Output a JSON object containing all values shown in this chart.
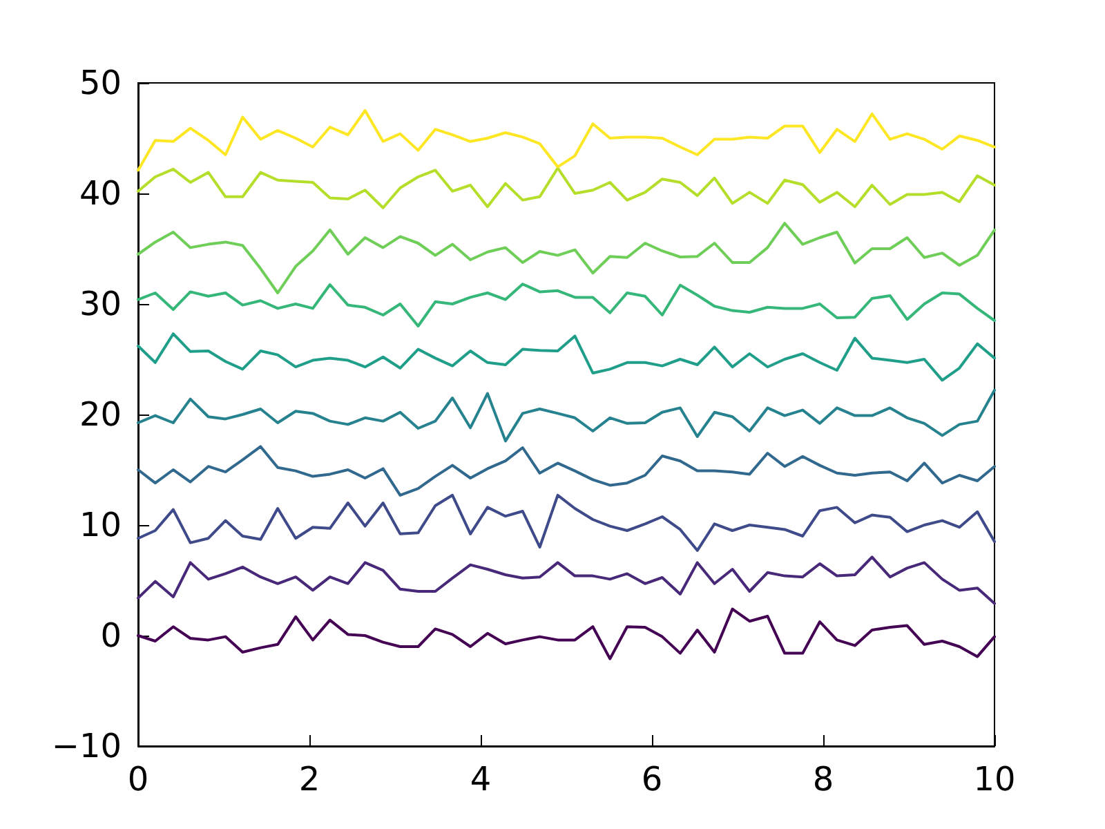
{
  "chart_data": {
    "type": "line",
    "x": [
      0,
      0.2,
      0.41,
      0.61,
      0.82,
      1.02,
      1.22,
      1.43,
      1.63,
      1.84,
      2.04,
      2.24,
      2.45,
      2.65,
      2.86,
      3.06,
      3.27,
      3.47,
      3.67,
      3.88,
      4.08,
      4.29,
      4.49,
      4.69,
      4.9,
      5.1,
      5.31,
      5.51,
      5.71,
      5.92,
      6.12,
      6.33,
      6.53,
      6.73,
      6.94,
      7.14,
      7.35,
      7.55,
      7.76,
      7.96,
      8.16,
      8.37,
      8.57,
      8.78,
      8.98,
      9.18,
      9.39,
      9.59,
      9.8,
      10
    ],
    "series": [
      {
        "color": "#440154",
        "values": [
          0,
          -0.5,
          0.8,
          -0.25,
          -0.4,
          -0.1,
          -1.5,
          -1.1,
          -0.8,
          1.7,
          -0.4,
          1.4,
          0.1,
          0,
          -0.6,
          -1.0,
          -1.0,
          0.6,
          0.1,
          -1.0,
          0.2,
          -0.75,
          -0.4,
          -0.1,
          -0.4,
          -0.4,
          0.8,
          -2.1,
          0.8,
          0.75,
          -0.1,
          -1.6,
          0.5,
          -1.5,
          2.4,
          1.3,
          1.75,
          -1.6,
          -1.6,
          1.25,
          -0.4,
          -0.9,
          0.5,
          0.75,
          0.9,
          -0.8,
          -0.5,
          -1.0,
          -1.9,
          -0.1
        ]
      },
      {
        "color": "#482878",
        "values": [
          3.4,
          4.9,
          3.5,
          6.6,
          5.1,
          5.6,
          6.2,
          5.3,
          4.7,
          5.3,
          4.1,
          5.3,
          4.7,
          6.6,
          5.9,
          4.2,
          4.0,
          4.0,
          5.2,
          6.4,
          6.0,
          5.5,
          5.2,
          5.3,
          6.6,
          5.4,
          5.4,
          5.1,
          5.6,
          4.7,
          5.25,
          3.75,
          6.6,
          4.7,
          6.0,
          4.0,
          5.7,
          5.4,
          5.3,
          6.5,
          5.4,
          5.5,
          7.1,
          5.3,
          6.1,
          6.6,
          5.1,
          4.1,
          4.3,
          2.9
        ]
      },
      {
        "color": "#3e4a89",
        "values": [
          8.8,
          9.5,
          11.4,
          8.4,
          8.8,
          10.4,
          9.0,
          8.7,
          11.5,
          8.8,
          9.8,
          9.7,
          12.0,
          9.9,
          12.0,
          9.2,
          9.3,
          11.75,
          12.7,
          9.2,
          11.6,
          10.8,
          11.25,
          8.0,
          12.7,
          11.5,
          10.5,
          9.9,
          9.5,
          10.1,
          10.75,
          9.6,
          7.7,
          10.1,
          9.5,
          10.0,
          9.8,
          9.6,
          9.0,
          11.3,
          11.6,
          10.2,
          10.9,
          10.7,
          9.4,
          10.0,
          10.4,
          9.8,
          11.2,
          8.5
        ]
      },
      {
        "color": "#31688e",
        "values": [
          15.0,
          13.8,
          15.0,
          13.9,
          15.3,
          14.8,
          15.9,
          17.1,
          15.2,
          14.9,
          14.4,
          14.6,
          15.0,
          14.25,
          15.1,
          12.7,
          13.3,
          14.4,
          15.4,
          14.25,
          15.1,
          15.8,
          17.0,
          14.7,
          15.6,
          14.9,
          14.1,
          13.6,
          13.8,
          14.5,
          16.25,
          15.8,
          14.9,
          14.9,
          14.8,
          14.6,
          16.5,
          15.3,
          16.2,
          15.4,
          14.7,
          14.5,
          14.7,
          14.8,
          14.0,
          15.6,
          13.8,
          14.5,
          14.0,
          15.3
        ]
      },
      {
        "color": "#26828e",
        "values": [
          19.25,
          19.9,
          19.25,
          21.4,
          19.8,
          19.6,
          20.0,
          20.5,
          19.25,
          20.3,
          20.1,
          19.4,
          19.1,
          19.7,
          19.4,
          20.2,
          18.75,
          19.4,
          21.5,
          18.8,
          21.9,
          17.6,
          20.1,
          20.5,
          20.1,
          19.7,
          18.5,
          19.7,
          19.2,
          19.25,
          20.2,
          20.6,
          18.0,
          20.2,
          19.8,
          18.5,
          20.6,
          19.9,
          20.4,
          19.2,
          20.6,
          19.9,
          19.9,
          20.6,
          19.7,
          19.2,
          18.1,
          19.1,
          19.4,
          22.2
        ]
      },
      {
        "color": "#1f9e89",
        "values": [
          26.2,
          24.7,
          27.3,
          25.7,
          25.75,
          24.8,
          24.1,
          25.75,
          25.4,
          24.3,
          24.9,
          25.1,
          24.9,
          24.3,
          25.2,
          24.2,
          25.9,
          25.1,
          24.4,
          25.75,
          24.7,
          24.5,
          25.9,
          25.8,
          25.75,
          27.1,
          23.75,
          24.1,
          24.7,
          24.7,
          24.4,
          25.0,
          24.5,
          26.1,
          24.3,
          25.5,
          24.3,
          25.0,
          25.5,
          24.7,
          24.0,
          26.9,
          25.1,
          24.9,
          24.7,
          25.0,
          23.1,
          24.2,
          26.4,
          25.1
        ]
      },
      {
        "color": "#35b779",
        "values": [
          30.4,
          31.0,
          29.5,
          31.1,
          30.7,
          31.0,
          29.9,
          30.3,
          29.6,
          30.0,
          29.6,
          31.75,
          29.9,
          29.7,
          29.0,
          30.0,
          28.0,
          30.2,
          30.0,
          30.6,
          31.0,
          30.4,
          31.8,
          31.1,
          31.2,
          30.6,
          30.6,
          29.2,
          31.0,
          30.7,
          29.0,
          31.7,
          30.8,
          29.8,
          29.4,
          29.25,
          29.7,
          29.6,
          29.6,
          30.0,
          28.75,
          28.8,
          30.5,
          30.75,
          28.6,
          30.0,
          31.0,
          30.9,
          29.6,
          28.5
        ]
      },
      {
        "color": "#6ece58",
        "values": [
          34.5,
          35.6,
          36.5,
          35.1,
          35.4,
          35.6,
          35.3,
          33.2,
          31.0,
          33.4,
          34.8,
          36.7,
          34.5,
          36.0,
          35.1,
          36.1,
          35.5,
          34.4,
          35.4,
          34.0,
          34.7,
          35.1,
          33.75,
          34.75,
          34.4,
          34.9,
          32.8,
          34.3,
          34.2,
          35.5,
          34.8,
          34.25,
          34.3,
          35.5,
          33.75,
          33.75,
          35.1,
          37.3,
          35.4,
          36.0,
          36.5,
          33.7,
          35.0,
          35.0,
          36.0,
          34.2,
          34.6,
          33.5,
          34.4,
          36.7
        ]
      },
      {
        "color": "#b5de2b",
        "values": [
          40.2,
          41.5,
          42.2,
          41.0,
          41.9,
          39.7,
          39.7,
          41.9,
          41.2,
          41.1,
          41.0,
          39.6,
          39.5,
          40.3,
          38.7,
          40.5,
          41.5,
          42.1,
          40.2,
          40.75,
          38.8,
          40.9,
          39.4,
          39.7,
          42.3,
          40.0,
          40.3,
          41.0,
          39.4,
          40.1,
          41.3,
          41.0,
          39.8,
          41.4,
          39.1,
          40.1,
          39.1,
          41.2,
          40.8,
          39.2,
          40.1,
          38.8,
          40.75,
          39.0,
          39.9,
          39.9,
          40.1,
          39.25,
          41.6,
          40.75
        ]
      },
      {
        "color": "#fde725",
        "values": [
          42.1,
          44.8,
          44.7,
          45.9,
          44.8,
          43.5,
          46.9,
          44.9,
          45.7,
          45.0,
          44.2,
          46.0,
          45.3,
          47.5,
          44.7,
          45.4,
          43.9,
          45.8,
          45.3,
          44.7,
          45.0,
          45.5,
          45.1,
          44.5,
          42.4,
          43.4,
          46.3,
          45.0,
          45.1,
          45.1,
          45.0,
          44.2,
          43.5,
          44.9,
          44.9,
          45.1,
          45.0,
          46.1,
          46.1,
          43.7,
          45.8,
          44.7,
          47.2,
          44.9,
          45.4,
          44.9,
          44.0,
          45.2,
          44.8,
          44.2
        ]
      }
    ],
    "xlim": [
      0,
      10
    ],
    "xticks": [
      0,
      2,
      4,
      6,
      8,
      10
    ],
    "ylim": [
      -10,
      50
    ],
    "yticks": [
      {
        "value": -10,
        "label": "−10"
      },
      0,
      10,
      20,
      30,
      40,
      50
    ]
  }
}
